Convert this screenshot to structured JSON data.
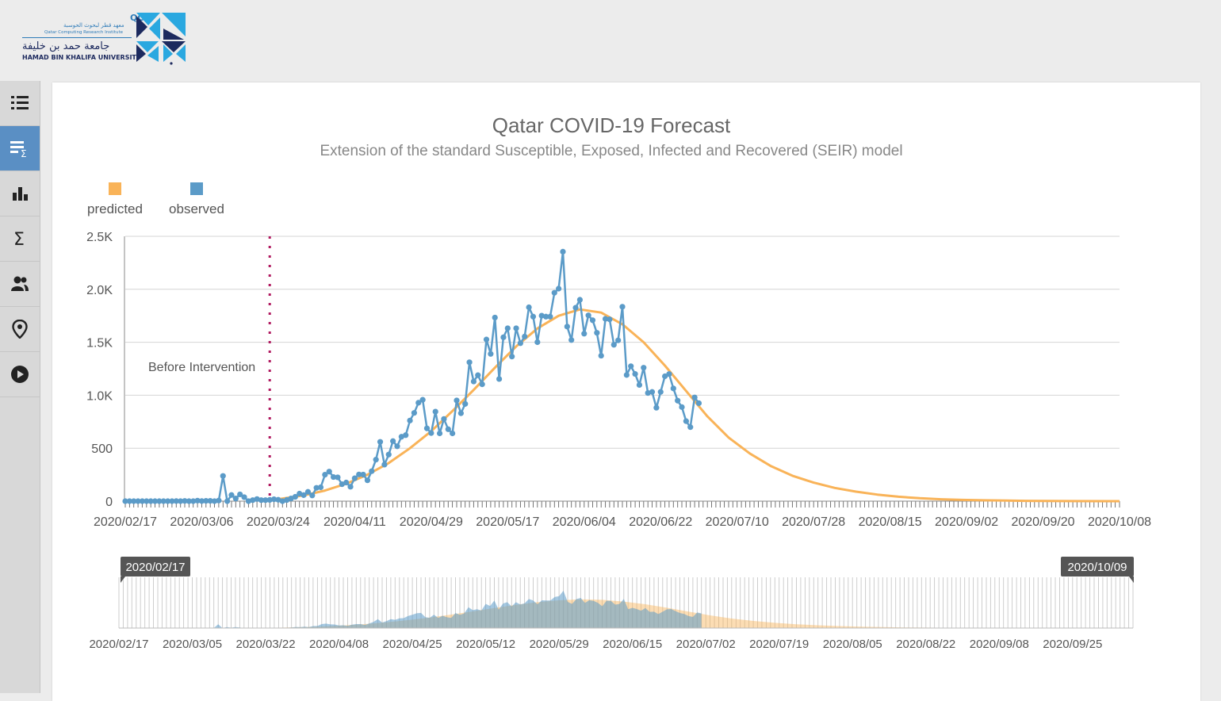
{
  "logo": {
    "qcri": "QCRI",
    "arabic_institute": "معهد قطر لبحوث الحوسبة",
    "english_institute": "Qatar Computing Research Institute",
    "arabic_university": "جامعة حمد بن خليفة",
    "english_university": "HAMAD BIN KHALIFA UNIVERSITY"
  },
  "sidebar": {
    "items": [
      {
        "icon": "list-icon",
        "active": false
      },
      {
        "icon": "list-sigma-icon",
        "active": true
      },
      {
        "icon": "bar-chart-icon",
        "active": false
      },
      {
        "icon": "sigma-icon",
        "active": false
      },
      {
        "icon": "users-icon",
        "active": false
      },
      {
        "icon": "location-pin-icon",
        "active": false
      },
      {
        "icon": "play-icon",
        "active": false
      }
    ]
  },
  "colors": {
    "predicted": "#f9b358",
    "observed": "#5b9bc8",
    "intervention": "#b0195f",
    "active_nav": "#5a8fc4"
  },
  "chart_data": {
    "type": "line",
    "title": "Qatar COVID-19 Forecast",
    "subtitle": "Extension of the standard Susceptible, Exposed, Infected and Recovered (SEIR) model",
    "legend": {
      "position": "top-left",
      "entries": [
        "predicted",
        "observed"
      ]
    },
    "ylim": [
      0,
      2500
    ],
    "y_ticks": [
      "0",
      "500",
      "1.0K",
      "1.5K",
      "2.0K",
      "2.5K"
    ],
    "x_range": [
      "2020/02/17",
      "2020/10/08"
    ],
    "x_ticks": [
      "2020/02/17",
      "2020/03/06",
      "2020/03/24",
      "2020/04/11",
      "2020/04/29",
      "2020/05/17",
      "2020/06/04",
      "2020/06/22",
      "2020/07/10",
      "2020/07/28",
      "2020/08/15",
      "2020/09/02",
      "2020/09/20",
      "2020/10/08"
    ],
    "grid": true,
    "annotations": [
      {
        "text": "Before Intervention",
        "date": "2020/03/22",
        "style": "dotted-vertical-line"
      }
    ],
    "series": [
      {
        "name": "predicted",
        "points": [
          [
            "2020/03/20",
            0
          ],
          [
            "2020/03/25",
            25
          ],
          [
            "2020/03/30",
            55
          ],
          [
            "2020/04/04",
            100
          ],
          [
            "2020/04/09",
            165
          ],
          [
            "2020/04/14",
            250
          ],
          [
            "2020/04/19",
            360
          ],
          [
            "2020/04/24",
            500
          ],
          [
            "2020/04/29",
            660
          ],
          [
            "2020/05/04",
            850
          ],
          [
            "2020/05/09",
            1050
          ],
          [
            "2020/05/14",
            1260
          ],
          [
            "2020/05/19",
            1460
          ],
          [
            "2020/05/24",
            1630
          ],
          [
            "2020/05/29",
            1750
          ],
          [
            "2020/06/03",
            1810
          ],
          [
            "2020/06/08",
            1780
          ],
          [
            "2020/06/13",
            1670
          ],
          [
            "2020/06/18",
            1500
          ],
          [
            "2020/06/23",
            1280
          ],
          [
            "2020/06/28",
            1040
          ],
          [
            "2020/07/03",
            800
          ],
          [
            "2020/07/08",
            600
          ],
          [
            "2020/07/13",
            450
          ],
          [
            "2020/07/18",
            330
          ],
          [
            "2020/07/23",
            240
          ],
          [
            "2020/07/28",
            175
          ],
          [
            "2020/08/02",
            125
          ],
          [
            "2020/08/07",
            90
          ],
          [
            "2020/08/12",
            62
          ],
          [
            "2020/08/17",
            42
          ],
          [
            "2020/08/22",
            28
          ],
          [
            "2020/08/27",
            18
          ],
          [
            "2020/09/01",
            12
          ],
          [
            "2020/09/06",
            8
          ],
          [
            "2020/09/16",
            3
          ],
          [
            "2020/09/26",
            1
          ],
          [
            "2020/10/08",
            0
          ]
        ]
      },
      {
        "name": "observed",
        "points": [
          [
            "2020/02/17",
            0
          ],
          [
            "2020/02/18",
            0
          ],
          [
            "2020/02/19",
            0
          ],
          [
            "2020/02/20",
            0
          ],
          [
            "2020/02/21",
            0
          ],
          [
            "2020/02/22",
            0
          ],
          [
            "2020/02/23",
            0
          ],
          [
            "2020/02/24",
            0
          ],
          [
            "2020/02/25",
            0
          ],
          [
            "2020/02/26",
            0
          ],
          [
            "2020/02/27",
            0
          ],
          [
            "2020/02/28",
            0
          ],
          [
            "2020/02/29",
            1
          ],
          [
            "2020/03/01",
            0
          ],
          [
            "2020/03/02",
            2
          ],
          [
            "2020/03/03",
            0
          ],
          [
            "2020/03/04",
            0
          ],
          [
            "2020/03/05",
            5
          ],
          [
            "2020/03/06",
            1
          ],
          [
            "2020/03/07",
            3
          ],
          [
            "2020/03/08",
            3
          ],
          [
            "2020/03/09",
            0
          ],
          [
            "2020/03/10",
            6
          ],
          [
            "2020/03/11",
            238
          ],
          [
            "2020/03/12",
            0
          ],
          [
            "2020/03/13",
            58
          ],
          [
            "2020/03/14",
            25
          ],
          [
            "2020/03/15",
            64
          ],
          [
            "2020/03/16",
            38
          ],
          [
            "2020/03/17",
            0
          ],
          [
            "2020/03/18",
            10
          ],
          [
            "2020/03/19",
            20
          ],
          [
            "2020/03/20",
            10
          ],
          [
            "2020/03/21",
            10
          ],
          [
            "2020/03/22",
            12
          ],
          [
            "2020/03/23",
            18
          ],
          [
            "2020/03/24",
            13
          ],
          [
            "2020/03/25",
            0
          ],
          [
            "2020/03/26",
            11
          ],
          [
            "2020/03/27",
            25
          ],
          [
            "2020/03/28",
            41
          ],
          [
            "2020/03/29",
            71
          ],
          [
            "2020/03/30",
            57
          ],
          [
            "2020/03/31",
            88
          ],
          [
            "2020/04/01",
            54
          ],
          [
            "2020/04/02",
            126
          ],
          [
            "2020/04/03",
            131
          ],
          [
            "2020/04/04",
            250
          ],
          [
            "2020/04/05",
            279
          ],
          [
            "2020/04/06",
            228
          ],
          [
            "2020/04/07",
            225
          ],
          [
            "2020/04/08",
            160
          ],
          [
            "2020/04/09",
            176
          ],
          [
            "2020/04/10",
            136
          ],
          [
            "2020/04/11",
            216
          ],
          [
            "2020/04/12",
            252
          ],
          [
            "2020/04/13",
            251
          ],
          [
            "2020/04/14",
            197
          ],
          [
            "2020/04/15",
            283
          ],
          [
            "2020/04/16",
            392
          ],
          [
            "2020/04/17",
            560
          ],
          [
            "2020/04/18",
            345
          ],
          [
            "2020/04/19",
            440
          ],
          [
            "2020/04/20",
            567
          ],
          [
            "2020/04/21",
            518
          ],
          [
            "2020/04/22",
            608
          ],
          [
            "2020/04/23",
            623
          ],
          [
            "2020/04/24",
            761
          ],
          [
            "2020/04/25",
            833
          ],
          [
            "2020/04/26",
            929
          ],
          [
            "2020/04/27",
            957
          ],
          [
            "2020/04/28",
            687
          ],
          [
            "2020/04/29",
            643
          ],
          [
            "2020/04/30",
            845
          ],
          [
            "2020/05/01",
            640
          ],
          [
            "2020/05/02",
            776
          ],
          [
            "2020/05/03",
            679
          ],
          [
            "2020/05/04",
            640
          ],
          [
            "2020/05/05",
            951
          ],
          [
            "2020/05/06",
            830
          ],
          [
            "2020/05/07",
            918
          ],
          [
            "2020/05/08",
            1311
          ],
          [
            "2020/05/09",
            1130
          ],
          [
            "2020/05/10",
            1189
          ],
          [
            "2020/05/11",
            1103
          ],
          [
            "2020/05/12",
            1526
          ],
          [
            "2020/05/13",
            1390
          ],
          [
            "2020/05/14",
            1733
          ],
          [
            "2020/05/15",
            1153
          ],
          [
            "2020/05/16",
            1547
          ],
          [
            "2020/05/17",
            1632
          ],
          [
            "2020/05/18",
            1365
          ],
          [
            "2020/05/19",
            1632
          ],
          [
            "2020/05/20",
            1491
          ],
          [
            "2020/05/21",
            1554
          ],
          [
            "2020/05/22",
            1830
          ],
          [
            "2020/05/23",
            1742
          ],
          [
            "2020/05/24",
            1501
          ],
          [
            "2020/05/25",
            1751
          ],
          [
            "2020/05/26",
            1742
          ],
          [
            "2020/05/27",
            1742
          ],
          [
            "2020/05/28",
            1967
          ],
          [
            "2020/05/29",
            2006
          ],
          [
            "2020/05/30",
            2355
          ],
          [
            "2020/05/31",
            1648
          ],
          [
            "2020/06/01",
            1521
          ],
          [
            "2020/06/02",
            1826
          ],
          [
            "2020/06/03",
            1901
          ],
          [
            "2020/06/04",
            1581
          ],
          [
            "2020/06/05",
            1754
          ],
          [
            "2020/06/06",
            1708
          ],
          [
            "2020/06/07",
            1589
          ],
          [
            "2020/06/08",
            1373
          ],
          [
            "2020/06/09",
            1721
          ],
          [
            "2020/06/10",
            1716
          ],
          [
            "2020/06/11",
            1476
          ],
          [
            "2020/06/12",
            1518
          ],
          [
            "2020/06/13",
            1835
          ],
          [
            "2020/06/14",
            1191
          ],
          [
            "2020/06/15",
            1274
          ],
          [
            "2020/06/16",
            1201
          ],
          [
            "2020/06/17",
            1097
          ],
          [
            "2020/06/18",
            1260
          ],
          [
            "2020/06/19",
            1021
          ],
          [
            "2020/06/20",
            1031
          ],
          [
            "2020/06/21",
            882
          ],
          [
            "2020/06/22",
            1031
          ],
          [
            "2020/06/23",
            1179
          ],
          [
            "2020/06/24",
            1200
          ],
          [
            "2020/06/25",
            1064
          ],
          [
            "2020/06/26",
            949
          ],
          [
            "2020/06/27",
            888
          ],
          [
            "2020/06/28",
            755
          ],
          [
            "2020/06/29",
            699
          ],
          [
            "2020/06/30",
            979
          ],
          [
            "2020/07/01",
            925
          ]
        ]
      }
    ],
    "navigator": {
      "range_start": "2020/02/17",
      "range_end": "2020/10/09",
      "x_ticks": [
        "2020/02/17",
        "2020/03/05",
        "2020/03/22",
        "2020/04/08",
        "2020/04/25",
        "2020/05/12",
        "2020/05/29",
        "2020/06/15",
        "2020/07/02",
        "2020/07/19",
        "2020/08/05",
        "2020/08/22",
        "2020/09/08",
        "2020/09/25"
      ]
    }
  }
}
